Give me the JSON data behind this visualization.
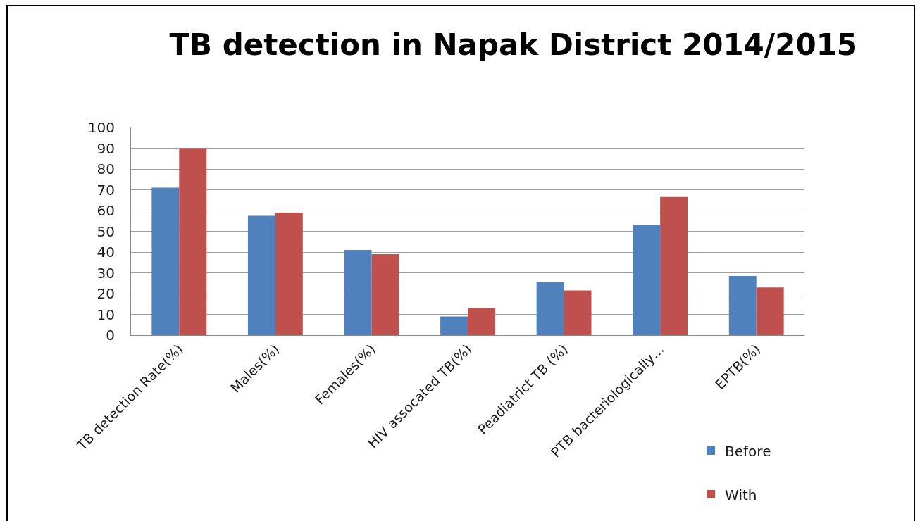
{
  "chart_data": {
    "type": "bar",
    "title": "TB detection in Napak District 2014/2015",
    "categories": [
      "TB detection Rate(%)",
      "Males(%)",
      "Females(%)",
      "HIV assocated TB(%)",
      "Peadiatrict TB (%)",
      "PTB bacteriologically…",
      "EPTB(%)"
    ],
    "series": [
      {
        "name": "Before",
        "color": "#4f81bd",
        "values": [
          71,
          57.5,
          41,
          9,
          25.5,
          53,
          28.5
        ]
      },
      {
        "name": "With",
        "color": "#c0504d",
        "values": [
          90,
          59,
          39,
          13,
          21.5,
          66.5,
          23
        ]
      }
    ],
    "ylim": [
      0,
      100
    ],
    "yticks": [
      0,
      10,
      20,
      30,
      40,
      50,
      60,
      70,
      80,
      90,
      100
    ],
    "grid": "y",
    "legend": "bottom right"
  }
}
